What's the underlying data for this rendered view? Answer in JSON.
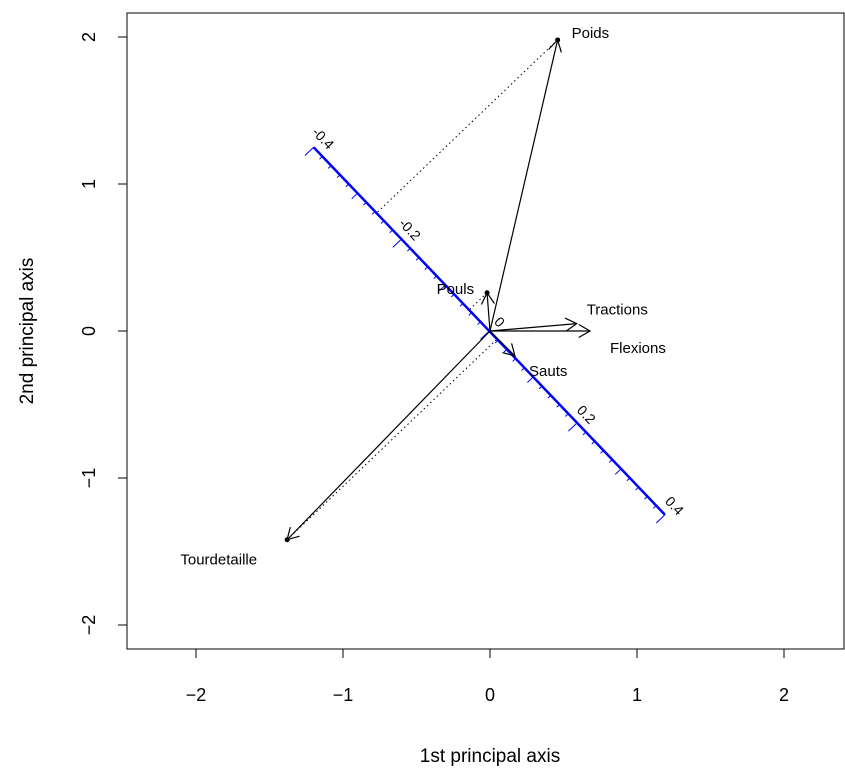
{
  "chart_data": {
    "type": "biplot",
    "xlabel": "1st principal axis",
    "ylabel": "2nd principal axis",
    "xlim": [
      -2.45,
      2.4
    ],
    "ylim": [
      -2.2,
      2.17
    ],
    "x_ticks": [
      {
        "value": -2,
        "label": "−2"
      },
      {
        "value": -1,
        "label": "−1"
      },
      {
        "value": 0,
        "label": "0"
      },
      {
        "value": 1,
        "label": "1"
      },
      {
        "value": 2,
        "label": "2"
      }
    ],
    "y_ticks": [
      {
        "value": -2,
        "label": "−2"
      },
      {
        "value": -1,
        "label": "−1"
      },
      {
        "value": 0,
        "label": "0"
      },
      {
        "value": 1,
        "label": "1"
      },
      {
        "value": 2,
        "label": "2"
      }
    ],
    "variables": [
      {
        "name": "Poids",
        "x": 0.46,
        "y": 1.98
      },
      {
        "name": "Pouls",
        "x": -0.02,
        "y": 0.26
      },
      {
        "name": "Tractions",
        "x": 0.59,
        "y": 0.05
      },
      {
        "name": "Flexions",
        "x": 0.68,
        "y": 0.0
      },
      {
        "name": "Sauts",
        "x": 0.17,
        "y": -0.17
      },
      {
        "name": "Tourdetaille",
        "x": -1.38,
        "y": -1.42
      }
    ],
    "point_markers": [
      {
        "name": "Poids",
        "x": 0.46,
        "y": 1.98
      },
      {
        "name": "Pouls",
        "x": -0.02,
        "y": 0.26
      },
      {
        "name": "Tourdetaille",
        "x": -1.38,
        "y": -1.42
      }
    ],
    "calibrated_axis": {
      "color": "#0000ff",
      "from": {
        "x": -1.2,
        "y": 1.25
      },
      "to": {
        "x": 1.19,
        "y": -1.25
      },
      "major_labels": [
        {
          "value": -0.4,
          "label": "-0.4",
          "x": -1.2,
          "y": 1.25
        },
        {
          "value": -0.2,
          "label": "-0.2",
          "x": -0.61,
          "y": 0.63
        },
        {
          "value": 0,
          "label": "0",
          "x": 0.0,
          "y": 0.0
        },
        {
          "value": 0.2,
          "label": "0.2",
          "x": 0.59,
          "y": -0.63
        },
        {
          "value": 0.4,
          "label": "0.4",
          "x": 1.19,
          "y": -1.25
        }
      ]
    }
  }
}
